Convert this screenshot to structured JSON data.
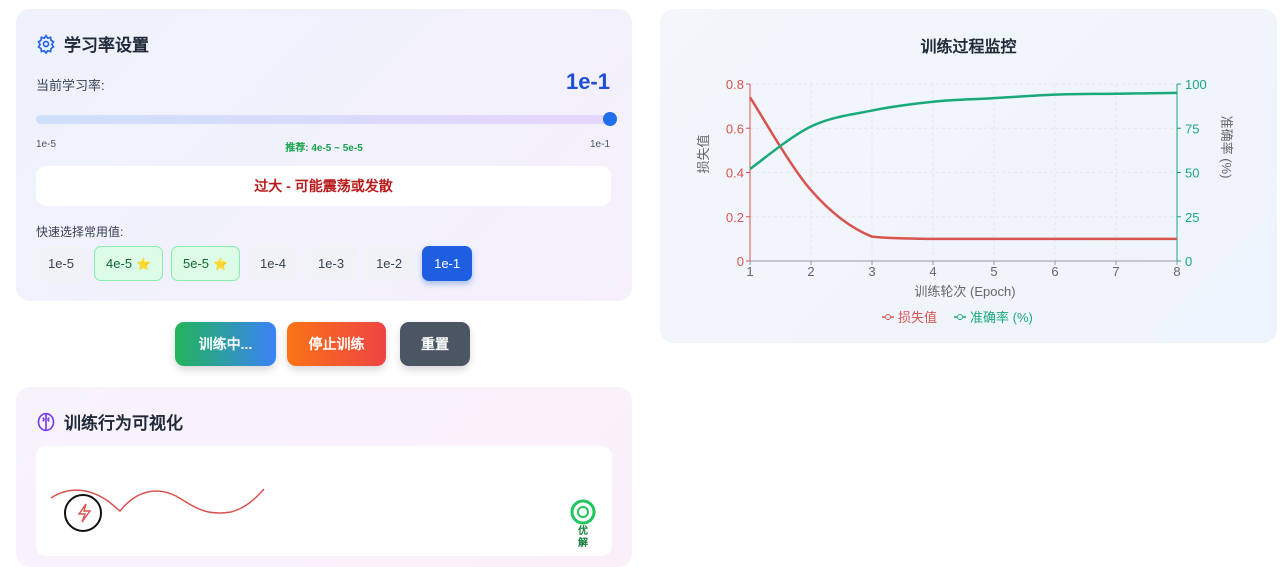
{
  "lr_panel": {
    "title": "学习率设置",
    "icon": "gear-icon",
    "current_label": "当前学习率:",
    "current_value": "1e-1",
    "slider_min": "1e-5",
    "slider_max": "1e-1",
    "slider_fraction": 1.0,
    "recommend": "推荐: 4e-5 ~ 5e-5",
    "status": "过大 - 可能震荡或发散",
    "quick_label": "快速选择常用值:",
    "chips": [
      {
        "label": "1e-5"
      },
      {
        "label": "4e-5",
        "star": "⭐"
      },
      {
        "label": "5e-5",
        "star": "⭐"
      },
      {
        "label": "1e-4"
      },
      {
        "label": "1e-3"
      },
      {
        "label": "1e-2"
      },
      {
        "label": "1e-1"
      }
    ],
    "selected": "1e-1"
  },
  "actions": {
    "training": "训练中...",
    "stop": "停止训练",
    "reset": "重置"
  },
  "viz_panel": {
    "title": "训练行为可视化",
    "icon": "brain-icon",
    "target_label": "优解"
  },
  "monitor": {
    "title": "训练过程监控"
  },
  "colors": {
    "loss": "#d9534f",
    "accuracy": "#1aaa7a",
    "accent": "#1d5fe0"
  },
  "chart_data": {
    "type": "line",
    "xlabel": "训练轮次 (Epoch)",
    "ylabel_left": "损失值",
    "ylabel_right": "准确率 (%)",
    "x": [
      1,
      2,
      3,
      4,
      5,
      6,
      7,
      8
    ],
    "xlim": [
      1,
      8
    ],
    "ylim_left": [
      0,
      0.8
    ],
    "ylim_right": [
      0,
      100
    ],
    "yticks_left": [
      "0",
      "0.2",
      "0.4",
      "0.6",
      "0.8"
    ],
    "yticks_right": [
      "0",
      "25",
      "50",
      "75",
      "100"
    ],
    "series": [
      {
        "name": "损失值",
        "axis": "left",
        "values": [
          0.74,
          0.32,
          0.11,
          0.1,
          0.1,
          0.1,
          0.1,
          0.1
        ]
      },
      {
        "name": "准确率 (%)",
        "axis": "right",
        "values": [
          52,
          76,
          85,
          90,
          92,
          94,
          94.5,
          95
        ]
      }
    ],
    "legend": "bottom",
    "grid": true
  }
}
